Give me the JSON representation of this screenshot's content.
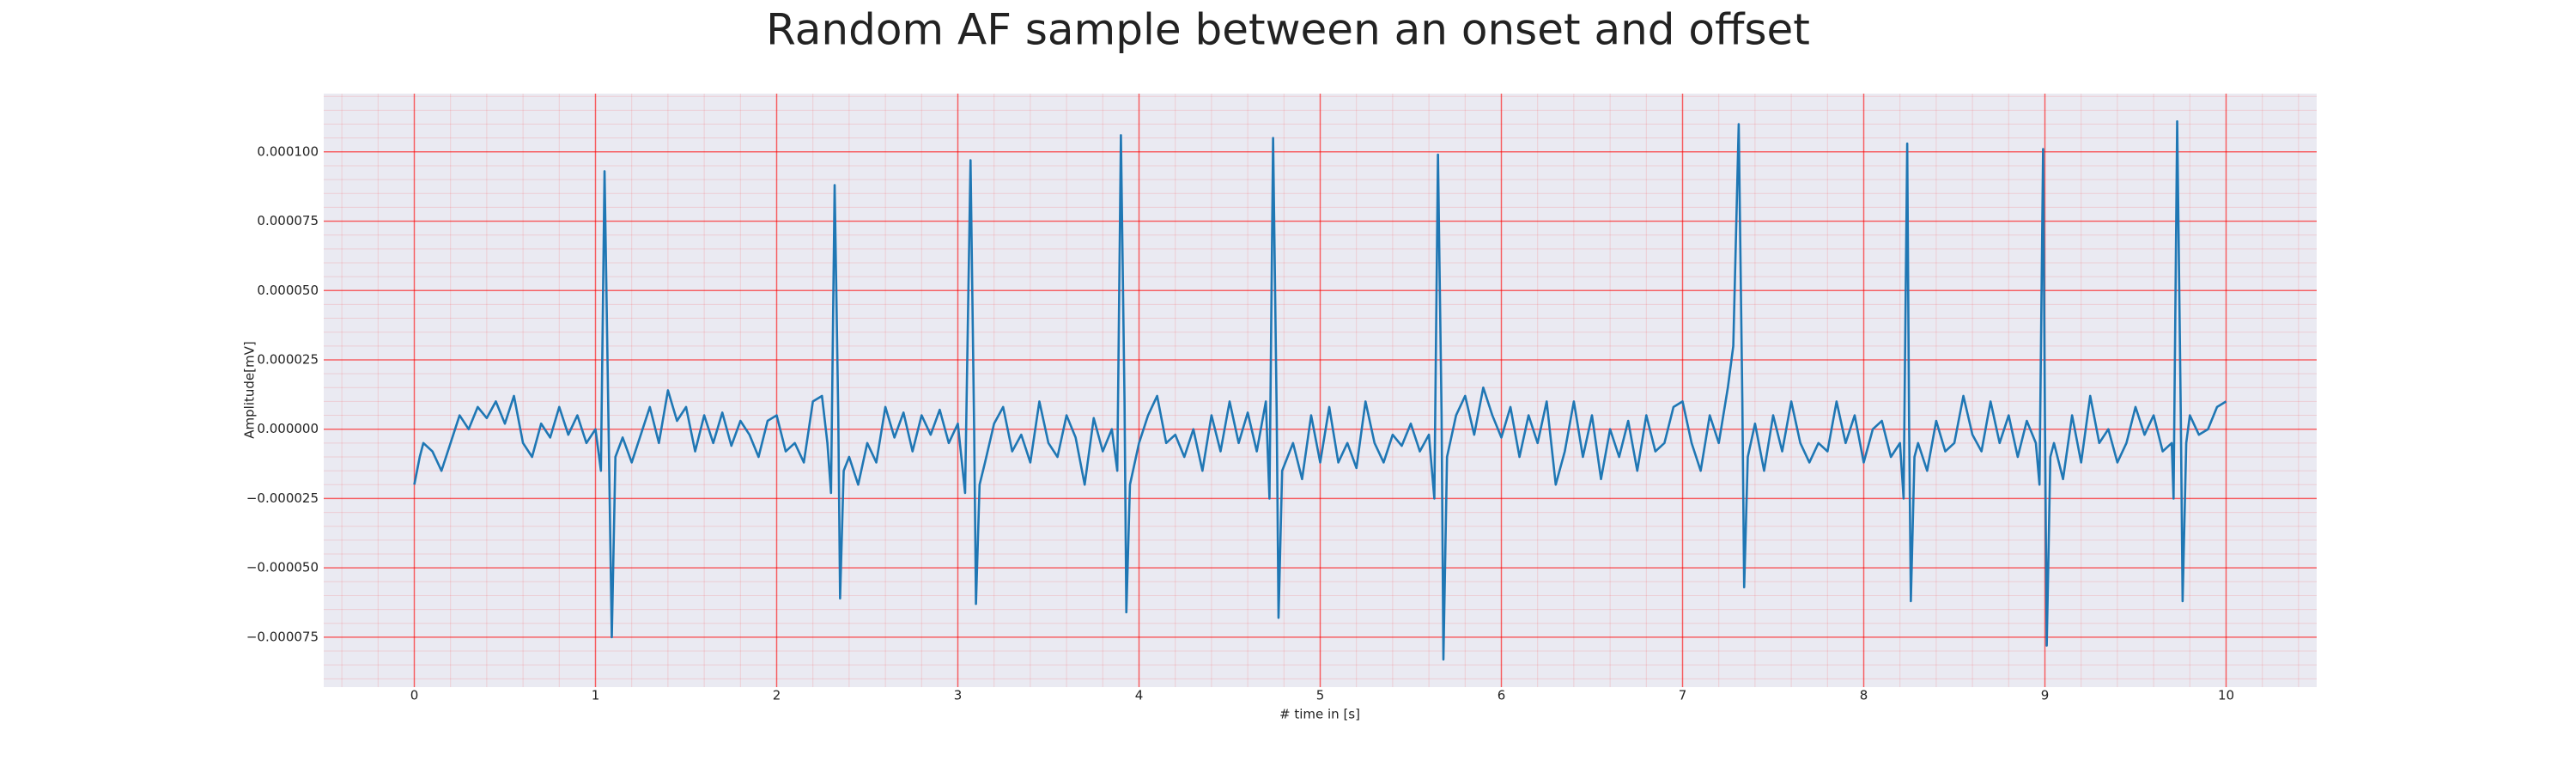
{
  "chart_data": {
    "type": "line",
    "title": "Random AF sample between an onset and offset",
    "xlabel": "# time in [s]",
    "ylabel": "Amplitude[mV]",
    "color": "#1f77b4",
    "grid": true,
    "grid_color": "#ff0000",
    "xlim": [
      -0.5,
      10.5
    ],
    "ylim": [
      -9.3e-05,
      0.000121
    ],
    "xticks": [
      0,
      1,
      2,
      3,
      4,
      5,
      6,
      7,
      8,
      9,
      10
    ],
    "yticks": [
      {
        "value": -7.5e-05,
        "label": "−0.000075"
      },
      {
        "value": -5e-05,
        "label": "−0.000050"
      },
      {
        "value": -2.5e-05,
        "label": "−0.000025"
      },
      {
        "value": 0,
        "label": "0.000000"
      },
      {
        "value": 2.5e-05,
        "label": "0.000025"
      },
      {
        "value": 5e-05,
        "label": "0.000050"
      },
      {
        "value": 7.5e-05,
        "label": "0.000075"
      },
      {
        "value": 0.0001,
        "label": "0.000100"
      }
    ],
    "x": [
      0,
      0.03,
      0.05,
      0.1,
      0.15,
      0.2,
      0.25,
      0.3,
      0.35,
      0.4,
      0.45,
      0.5,
      0.55,
      0.6,
      0.65,
      0.7,
      0.75,
      0.8,
      0.85,
      0.9,
      0.95,
      1.0,
      1.03,
      1.05,
      1.07,
      1.09,
      1.11,
      1.15,
      1.2,
      1.25,
      1.3,
      1.35,
      1.4,
      1.45,
      1.5,
      1.55,
      1.6,
      1.65,
      1.7,
      1.75,
      1.8,
      1.85,
      1.9,
      1.95,
      2.0,
      2.05,
      2.1,
      2.15,
      2.2,
      2.25,
      2.28,
      2.3,
      2.32,
      2.34,
      2.35,
      2.37,
      2.4,
      2.45,
      2.5,
      2.55,
      2.6,
      2.65,
      2.7,
      2.75,
      2.8,
      2.85,
      2.9,
      2.95,
      3.0,
      3.04,
      3.07,
      3.09,
      3.1,
      3.12,
      3.15,
      3.2,
      3.25,
      3.3,
      3.35,
      3.4,
      3.45,
      3.5,
      3.55,
      3.6,
      3.65,
      3.7,
      3.75,
      3.8,
      3.85,
      3.88,
      3.9,
      3.92,
      3.93,
      3.95,
      4.0,
      4.05,
      4.1,
      4.15,
      4.2,
      4.25,
      4.3,
      4.35,
      4.4,
      4.45,
      4.5,
      4.55,
      4.6,
      4.65,
      4.7,
      4.72,
      4.74,
      4.76,
      4.77,
      4.79,
      4.85,
      4.9,
      4.95,
      5.0,
      5.05,
      5.1,
      5.15,
      5.2,
      5.25,
      5.3,
      5.35,
      5.4,
      5.45,
      5.5,
      5.55,
      5.6,
      5.63,
      5.65,
      5.67,
      5.68,
      5.7,
      5.75,
      5.8,
      5.85,
      5.9,
      5.95,
      6.0,
      6.05,
      6.1,
      6.15,
      6.2,
      6.25,
      6.3,
      6.35,
      6.4,
      6.45,
      6.5,
      6.55,
      6.6,
      6.65,
      6.7,
      6.75,
      6.8,
      6.85,
      6.9,
      6.95,
      7.0,
      7.05,
      7.1,
      7.15,
      7.2,
      7.25,
      7.28,
      7.31,
      7.33,
      7.34,
      7.36,
      7.4,
      7.45,
      7.5,
      7.55,
      7.6,
      7.65,
      7.7,
      7.75,
      7.8,
      7.85,
      7.9,
      7.95,
      8.0,
      8.05,
      8.1,
      8.15,
      8.2,
      8.22,
      8.24,
      8.25,
      8.26,
      8.28,
      8.3,
      8.35,
      8.4,
      8.45,
      8.5,
      8.55,
      8.6,
      8.65,
      8.7,
      8.75,
      8.8,
      8.85,
      8.9,
      8.95,
      8.97,
      8.99,
      9.0,
      9.01,
      9.03,
      9.05,
      9.1,
      9.15,
      9.2,
      9.25,
      9.3,
      9.35,
      9.4,
      9.45,
      9.5,
      9.55,
      9.6,
      9.65,
      9.7,
      9.71,
      9.73,
      9.75,
      9.76,
      9.78,
      9.8,
      9.85,
      9.9,
      9.95,
      10.0
    ],
    "values": [
      -2e-05,
      -1e-05,
      -5e-06,
      -8e-06,
      -1.5e-05,
      -5e-06,
      5e-06,
      0,
      8e-06,
      4e-06,
      1e-05,
      2e-06,
      1.2e-05,
      -5e-06,
      -1e-05,
      2e-06,
      -3e-06,
      8e-06,
      -2e-06,
      5e-06,
      -5e-06,
      0,
      -1.5e-05,
      9.3e-05,
      1e-05,
      -7.5e-05,
      -1e-05,
      -3e-06,
      -1.2e-05,
      -2e-06,
      8e-06,
      -5e-06,
      1.4e-05,
      3e-06,
      8e-06,
      -8e-06,
      5e-06,
      -5e-06,
      6e-06,
      -6e-06,
      3e-06,
      -2e-06,
      -1e-05,
      3e-06,
      5e-06,
      -8e-06,
      -5e-06,
      -1.2e-05,
      1e-05,
      1.2e-05,
      -5e-06,
      -2.3e-05,
      8.8e-05,
      5e-06,
      -6.1e-05,
      -1.5e-05,
      -1e-05,
      -2e-05,
      -5e-06,
      -1.2e-05,
      8e-06,
      -3e-06,
      6e-06,
      -8e-06,
      5e-06,
      -2e-06,
      7e-06,
      -5e-06,
      2e-06,
      -2.3e-05,
      9.7e-05,
      0,
      -6.3e-05,
      -2e-05,
      -1.2e-05,
      2e-06,
      8e-06,
      -8e-06,
      -2e-06,
      -1.2e-05,
      1e-05,
      -5e-06,
      -1e-05,
      5e-06,
      -3e-06,
      -2e-05,
      4e-06,
      -8e-06,
      0,
      -1.5e-05,
      0.000106,
      1e-05,
      -6.6e-05,
      -2e-05,
      -5e-06,
      5e-06,
      1.2e-05,
      -5e-06,
      -2e-06,
      -1e-05,
      0,
      -1.5e-05,
      5e-06,
      -8e-06,
      1e-05,
      -5e-06,
      6e-06,
      -8e-06,
      1e-05,
      -2.5e-05,
      0.000105,
      5e-06,
      -6.8e-05,
      -1.5e-05,
      -5e-06,
      -1.8e-05,
      5e-06,
      -1.2e-05,
      8e-06,
      -1.2e-05,
      -5e-06,
      -1.4e-05,
      1e-05,
      -5e-06,
      -1.2e-05,
      -2e-06,
      -6e-06,
      2e-06,
      -8e-06,
      -2e-06,
      -2.5e-05,
      9.9e-05,
      5e-06,
      -8.3e-05,
      -1e-05,
      5e-06,
      1.2e-05,
      -2e-06,
      1.5e-05,
      5e-06,
      -3e-06,
      8e-06,
      -1e-05,
      5e-06,
      -5e-06,
      1e-05,
      -2e-05,
      -8e-06,
      1e-05,
      -1e-05,
      5e-06,
      -1.8e-05,
      0,
      -1e-05,
      3e-06,
      -1.5e-05,
      5e-06,
      -8e-06,
      -5e-06,
      8e-06,
      1e-05,
      -5e-06,
      -1.5e-05,
      5e-06,
      -5e-06,
      1.5e-05,
      3e-05,
      0.00011,
      1e-05,
      -5.7e-05,
      -1e-05,
      2e-06,
      -1.5e-05,
      5e-06,
      -8e-06,
      1e-05,
      -5e-06,
      -1.2e-05,
      -5e-06,
      -8e-06,
      1e-05,
      -5e-06,
      5e-06,
      -1.2e-05,
      0,
      3e-06,
      -1e-05,
      -5e-06,
      -2.5e-05,
      0.000103,
      5e-06,
      -6.2e-05,
      -1e-05,
      -5e-06,
      -1.5e-05,
      3e-06,
      -8e-06,
      -5e-06,
      1.2e-05,
      -2e-06,
      -8e-06,
      1e-05,
      -5e-06,
      5e-06,
      -1e-05,
      3e-06,
      -5e-06,
      -2e-05,
      0.000101,
      5e-06,
      -7.8e-05,
      -1e-05,
      -5e-06,
      -1.8e-05,
      5e-06,
      -1.2e-05,
      1.2e-05,
      -5e-06,
      0,
      -1.2e-05,
      -5e-06,
      8e-06,
      -2e-06,
      5e-06,
      -8e-06,
      -5e-06,
      -2.5e-05,
      0.000111,
      5e-06,
      -6.2e-05,
      -5e-06,
      5e-06,
      -2e-06,
      0,
      8e-06,
      1e-05
    ]
  }
}
